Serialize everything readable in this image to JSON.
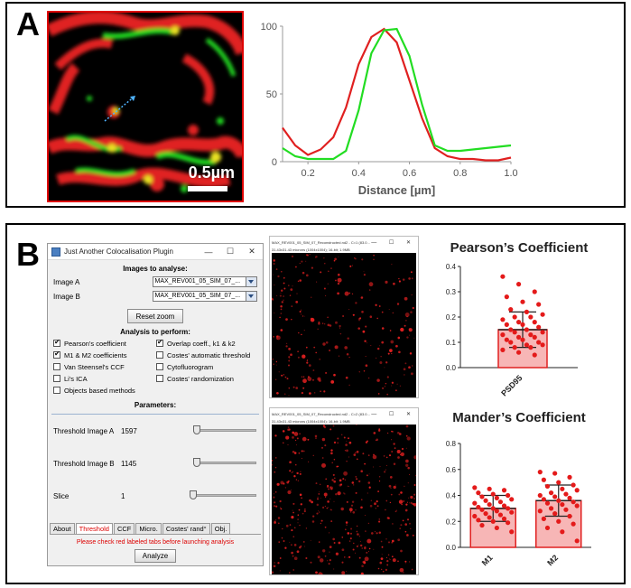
{
  "panel_a": {
    "letter": "A",
    "scale_label": "0.5µm"
  },
  "panel_b": {
    "letter": "B"
  },
  "plugin": {
    "title": "Just Another Colocalisation Plugin",
    "win_controls": [
      "—",
      "☐",
      "✕"
    ],
    "images_heading": "Images to analyse:",
    "image_a_label": "Image A",
    "image_a_value": "MAX_REV001_05_SIM_07_...",
    "image_b_label": "Image B",
    "image_b_value": "MAX_REV001_05_SIM_07_...",
    "reset_label": "Reset zoom",
    "analysis_heading": "Analysis to perform:",
    "checks": [
      {
        "label": "Pearson's coefficient",
        "checked": true
      },
      {
        "label": "Overlap coeff., k1 & k2",
        "checked": true
      },
      {
        "label": "M1 & M2 coefficients",
        "checked": true
      },
      {
        "label": "Costes' automatic threshold",
        "checked": false
      },
      {
        "label": "Van Steensel's CCF",
        "checked": false
      },
      {
        "label": "Cytofluorogram",
        "checked": false
      },
      {
        "label": "Li's ICA",
        "checked": false
      },
      {
        "label": "Costes' randomization",
        "checked": false
      },
      {
        "label": "Objects based methods",
        "checked": false
      }
    ],
    "params_heading": "Parameters:",
    "params": [
      {
        "label": "Threshold Image A",
        "value": "1597",
        "slider_fraction": 0.05
      },
      {
        "label": "Threshold Image B",
        "value": "1145",
        "slider_fraction": 0.05
      },
      {
        "label": "Slice",
        "value": "1",
        "slider_fraction": 0.0
      }
    ],
    "tabs": [
      {
        "label": "About",
        "active": false
      },
      {
        "label": "Threshold",
        "active": true
      },
      {
        "label": "CCF",
        "active": false
      },
      {
        "label": "Micro.",
        "active": false
      },
      {
        "label": "Costes' rand°",
        "active": false
      },
      {
        "label": "Obj.",
        "active": false
      }
    ],
    "warning": "Please check red labeled tabs before launching analysis",
    "analyze_label": "Analyze"
  },
  "image_windows": [
    {
      "title": "MAX_REV001_05_SIM_07_Reconstructed.nd2 - C=1 (83.0...",
      "info": "31.43x31.43 microns (1004x1004); 16-bit; 1.9MB",
      "controls": "— ☐ ✕"
    },
    {
      "title": "MAX_REV001_05_SIM_07_Reconstructed.nd2 - C=2 (83.0...",
      "info": "31.43x31.43 microns (1004x1004); 16-bit; 1.9MB",
      "controls": "— ☐ ✕"
    }
  ],
  "colors": {
    "red": "#e02020",
    "green": "#22dd22",
    "bar_fill": "#f7b6b6",
    "bar_edge": "#e02020",
    "dot": "#e41a1a"
  },
  "chart_data": [
    {
      "type": "line",
      "title": "",
      "xlabel": "Distance [µm]",
      "ylabel": "",
      "xlim": [
        0.1,
        1.0
      ],
      "ylim": [
        0,
        100
      ],
      "xticks": [
        "0.2",
        "0.4",
        "0.6",
        "0.8",
        "1.0"
      ],
      "yticks": [
        "0",
        "50",
        "100"
      ],
      "series": [
        {
          "color": "#e02020",
          "x": [
            0.1,
            0.15,
            0.2,
            0.25,
            0.3,
            0.35,
            0.4,
            0.45,
            0.5,
            0.55,
            0.6,
            0.65,
            0.7,
            0.75,
            0.8,
            0.85,
            0.9,
            0.95,
            1.0
          ],
          "y": [
            25,
            12,
            5,
            9,
            18,
            40,
            72,
            92,
            98,
            88,
            60,
            32,
            10,
            4,
            2,
            2,
            1,
            1,
            3
          ]
        },
        {
          "color": "#22dd22",
          "x": [
            0.1,
            0.15,
            0.2,
            0.25,
            0.3,
            0.35,
            0.4,
            0.45,
            0.5,
            0.55,
            0.6,
            0.65,
            0.7,
            0.75,
            0.8,
            0.85,
            0.9,
            0.95,
            1.0
          ],
          "y": [
            10,
            4,
            2,
            2,
            2,
            8,
            38,
            80,
            97,
            98,
            78,
            42,
            12,
            8,
            8,
            9,
            10,
            11,
            12
          ]
        }
      ]
    },
    {
      "type": "bar",
      "title": "Pearson’s Coefficient",
      "categories": [
        "PSD95"
      ],
      "values": [
        0.15
      ],
      "errors": [
        0.07
      ],
      "ylim": [
        0,
        0.4
      ],
      "yticks": [
        "0.0",
        "0.1",
        "0.2",
        "0.3",
        "0.4"
      ],
      "points": [
        [
          0.36,
          0.33,
          0.3,
          0.28,
          0.26,
          0.25,
          0.23,
          0.22,
          0.21,
          0.2,
          0.2,
          0.19,
          0.18,
          0.18,
          0.17,
          0.17,
          0.16,
          0.15,
          0.15,
          0.14,
          0.14,
          0.13,
          0.13,
          0.12,
          0.12,
          0.11,
          0.11,
          0.1,
          0.1,
          0.09,
          0.09,
          0.08,
          0.08,
          0.07,
          0.06,
          0.05
        ]
      ]
    },
    {
      "type": "bar",
      "title": "Mander’s Coefficient",
      "categories": [
        "M1",
        "M2"
      ],
      "values": [
        0.3,
        0.36
      ],
      "errors": [
        0.1,
        0.12
      ],
      "ylim": [
        0,
        0.8
      ],
      "yticks": [
        "0.0",
        "0.2",
        "0.4",
        "0.6",
        "0.8"
      ],
      "points": [
        [
          0.46,
          0.45,
          0.44,
          0.42,
          0.41,
          0.4,
          0.39,
          0.38,
          0.37,
          0.36,
          0.35,
          0.34,
          0.33,
          0.32,
          0.31,
          0.3,
          0.3,
          0.29,
          0.28,
          0.27,
          0.26,
          0.25,
          0.24,
          0.23,
          0.22,
          0.21,
          0.2,
          0.19,
          0.17,
          0.15,
          0.12
        ],
        [
          0.58,
          0.57,
          0.54,
          0.52,
          0.5,
          0.48,
          0.47,
          0.45,
          0.44,
          0.42,
          0.41,
          0.4,
          0.39,
          0.38,
          0.37,
          0.36,
          0.35,
          0.34,
          0.33,
          0.32,
          0.3,
          0.29,
          0.28,
          0.26,
          0.24,
          0.22,
          0.2,
          0.18,
          0.15,
          0.12,
          0.05
        ]
      ]
    }
  ]
}
